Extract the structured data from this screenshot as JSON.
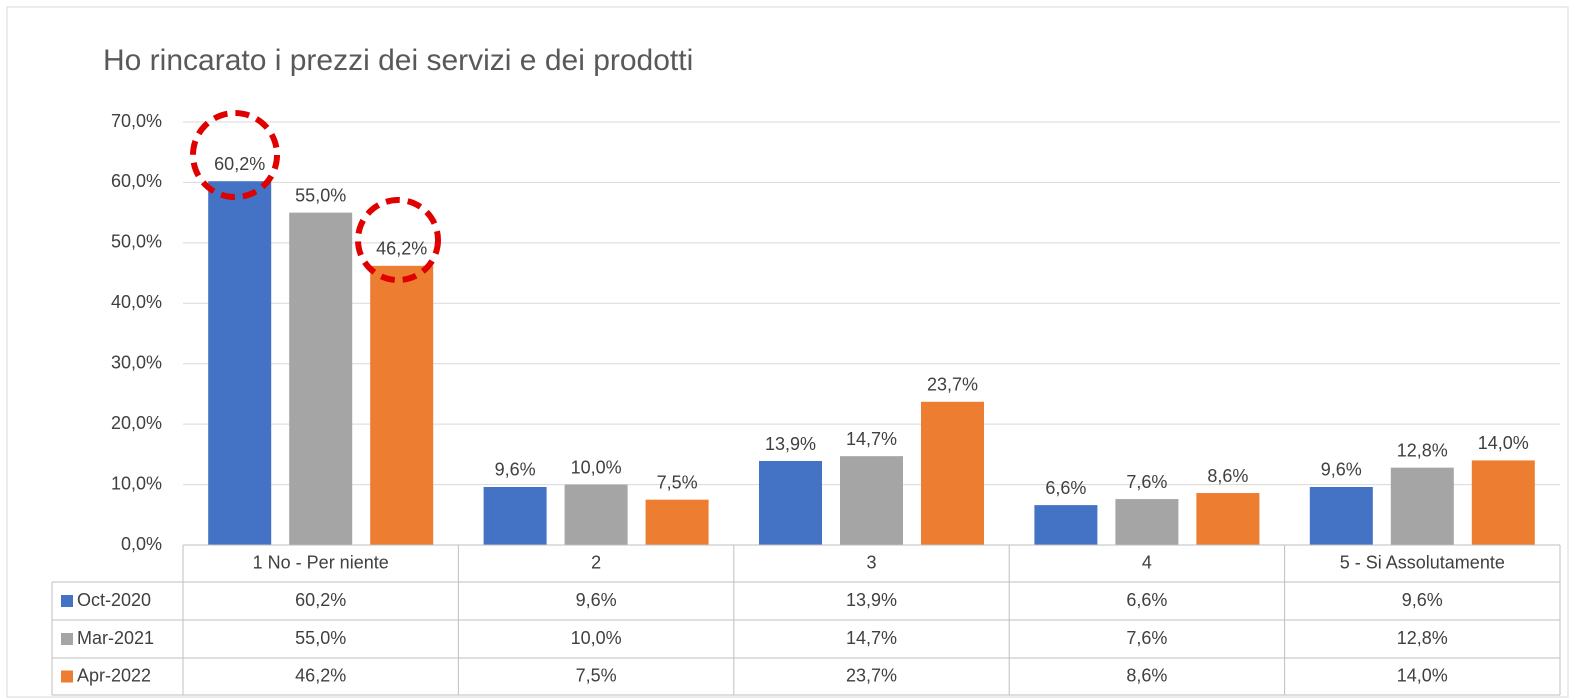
{
  "chart_data": {
    "type": "bar",
    "title": "Ho rincarato i prezzi dei servizi e dei prodotti",
    "categories": [
      "1 No - Per niente",
      "2",
      "3",
      "4",
      "5 - Si Assolutamente"
    ],
    "series": [
      {
        "name": "Oct-2020",
        "color": "#4472c4",
        "values": [
          60.2,
          9.6,
          13.9,
          6.6,
          9.6
        ],
        "value_labels": [
          "60,2%",
          "9,6%",
          "13,9%",
          "6,6%",
          "9,6%"
        ]
      },
      {
        "name": "Mar-2021",
        "color": "#a5a5a5",
        "values": [
          55.0,
          10.0,
          14.7,
          7.6,
          12.8
        ],
        "value_labels": [
          "55,0%",
          "10,0%",
          "14,7%",
          "7,6%",
          "12,8%"
        ]
      },
      {
        "name": "Apr-2022",
        "color": "#ed7d31",
        "values": [
          46.2,
          7.5,
          23.7,
          8.6,
          14.0
        ],
        "value_labels": [
          "46,2%",
          "7,5%",
          "23,7%",
          "8,6%",
          "14,0%"
        ]
      }
    ],
    "ylim": [
      0,
      70
    ],
    "yticks": [
      {
        "value": 0,
        "label": "0,0%"
      },
      {
        "value": 10,
        "label": "10,0%"
      },
      {
        "value": 20,
        "label": "20,0%"
      },
      {
        "value": 30,
        "label": "30,0%"
      },
      {
        "value": 40,
        "label": "40,0%"
      },
      {
        "value": 50,
        "label": "50,0%"
      },
      {
        "value": 60,
        "label": "60,0%"
      },
      {
        "value": 70,
        "label": "70,0%"
      }
    ],
    "grid": true
  }
}
